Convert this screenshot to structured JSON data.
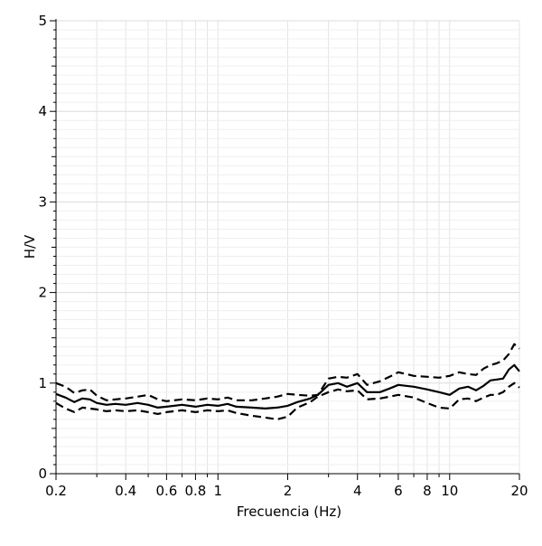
{
  "chart_data": {
    "type": "line",
    "title": "",
    "xlabel": "Frecuencia (Hz)",
    "ylabel": "H/V",
    "x_scale": "log",
    "xlim": [
      0.2,
      20
    ],
    "ylim": [
      0,
      5
    ],
    "grid": true,
    "x_ticks": [
      {
        "value": 0.2,
        "label": "0.2"
      },
      {
        "value": 0.4,
        "label": "0.4"
      },
      {
        "value": 0.6,
        "label": "0.6"
      },
      {
        "value": 0.8,
        "label": "0.8"
      },
      {
        "value": 1,
        "label": "1"
      },
      {
        "value": 2,
        "label": "2"
      },
      {
        "value": 4,
        "label": "4"
      },
      {
        "value": 6,
        "label": "6"
      },
      {
        "value": 8,
        "label": "8"
      },
      {
        "value": 10,
        "label": "10"
      },
      {
        "value": 20,
        "label": "20"
      }
    ],
    "y_ticks": [
      {
        "value": 0,
        "label": "0"
      },
      {
        "value": 1,
        "label": "1"
      },
      {
        "value": 2,
        "label": "2"
      },
      {
        "value": 3,
        "label": "3"
      },
      {
        "value": 4,
        "label": "4"
      },
      {
        "value": 5,
        "label": "5"
      }
    ],
    "series": [
      {
        "style": "solid",
        "x": [
          0.2,
          0.22,
          0.24,
          0.26,
          0.28,
          0.3,
          0.33,
          0.36,
          0.4,
          0.45,
          0.5,
          0.55,
          0.6,
          0.7,
          0.8,
          0.9,
          1.0,
          1.1,
          1.2,
          1.4,
          1.6,
          1.8,
          2.0,
          2.2,
          2.5,
          2.7,
          3.0,
          3.3,
          3.6,
          4.0,
          4.4,
          5.0,
          5.5,
          6.0,
          7.0,
          8.0,
          9.0,
          10.0,
          11.0,
          12.0,
          13.0,
          14.0,
          15.0,
          16.0,
          17.0,
          18.0,
          19.0,
          20.0
        ],
        "values": [
          0.88,
          0.84,
          0.79,
          0.83,
          0.82,
          0.78,
          0.76,
          0.77,
          0.76,
          0.78,
          0.76,
          0.73,
          0.74,
          0.76,
          0.74,
          0.76,
          0.75,
          0.77,
          0.74,
          0.73,
          0.72,
          0.73,
          0.75,
          0.79,
          0.83,
          0.87,
          0.98,
          1.0,
          0.96,
          1.0,
          0.9,
          0.9,
          0.94,
          0.98,
          0.96,
          0.93,
          0.9,
          0.87,
          0.94,
          0.96,
          0.92,
          0.97,
          1.03,
          1.04,
          1.05,
          1.15,
          1.2,
          1.13
        ]
      },
      {
        "style": "dashed",
        "x": [
          0.2,
          0.22,
          0.24,
          0.26,
          0.28,
          0.3,
          0.33,
          0.36,
          0.4,
          0.45,
          0.5,
          0.55,
          0.6,
          0.7,
          0.8,
          0.9,
          1.0,
          1.1,
          1.2,
          1.4,
          1.6,
          1.8,
          2.0,
          2.2,
          2.5,
          2.7,
          3.0,
          3.3,
          3.6,
          4.0,
          4.4,
          5.0,
          5.5,
          6.0,
          7.0,
          8.0,
          9.0,
          10.0,
          11.0,
          12.0,
          13.0,
          14.0,
          15.0,
          16.0,
          17.0,
          18.0,
          19.0,
          20.0
        ],
        "values": [
          1.0,
          0.96,
          0.89,
          0.92,
          0.93,
          0.86,
          0.81,
          0.82,
          0.83,
          0.85,
          0.87,
          0.82,
          0.8,
          0.82,
          0.81,
          0.83,
          0.82,
          0.84,
          0.81,
          0.81,
          0.83,
          0.85,
          0.88,
          0.87,
          0.86,
          0.87,
          1.05,
          1.07,
          1.06,
          1.1,
          0.98,
          1.02,
          1.07,
          1.12,
          1.08,
          1.07,
          1.06,
          1.08,
          1.12,
          1.1,
          1.09,
          1.16,
          1.2,
          1.22,
          1.25,
          1.32,
          1.43,
          1.38
        ]
      },
      {
        "style": "dashed",
        "x": [
          0.2,
          0.22,
          0.24,
          0.26,
          0.28,
          0.3,
          0.33,
          0.36,
          0.4,
          0.45,
          0.5,
          0.55,
          0.6,
          0.7,
          0.8,
          0.9,
          1.0,
          1.1,
          1.2,
          1.4,
          1.6,
          1.8,
          2.0,
          2.2,
          2.5,
          2.7,
          3.0,
          3.3,
          3.6,
          4.0,
          4.4,
          5.0,
          5.5,
          6.0,
          7.0,
          8.0,
          9.0,
          10.0,
          11.0,
          12.0,
          13.0,
          14.0,
          15.0,
          16.0,
          17.0,
          18.0,
          19.0,
          20.0
        ],
        "values": [
          0.78,
          0.72,
          0.68,
          0.73,
          0.72,
          0.71,
          0.69,
          0.7,
          0.69,
          0.7,
          0.68,
          0.66,
          0.68,
          0.7,
          0.68,
          0.7,
          0.69,
          0.7,
          0.67,
          0.64,
          0.62,
          0.6,
          0.63,
          0.73,
          0.79,
          0.85,
          0.9,
          0.93,
          0.91,
          0.92,
          0.82,
          0.83,
          0.85,
          0.87,
          0.84,
          0.78,
          0.73,
          0.72,
          0.82,
          0.83,
          0.8,
          0.84,
          0.87,
          0.87,
          0.9,
          0.96,
          1.0,
          0.95
        ]
      }
    ]
  }
}
